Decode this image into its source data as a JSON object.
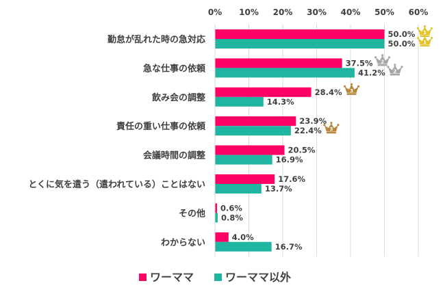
{
  "chart_data": {
    "type": "bar",
    "orientation": "horizontal",
    "categories": [
      "勤怠が乱れた時の急対応",
      "急な仕事の依頼",
      "飲み会の調整",
      "責任の重い仕事の依頼",
      "会議時間の調整",
      "とくに気を遣う（遣われている）ことはない",
      "その他",
      "わからない"
    ],
    "series": [
      {
        "name": "ワーママ",
        "color": "#FF0066",
        "values": [
          50.0,
          37.5,
          28.4,
          23.9,
          20.5,
          17.6,
          0.6,
          4.0
        ],
        "labels": [
          "50.0%",
          "37.5%",
          "28.4%",
          "23.9%",
          "20.5%",
          "17.6%",
          "0.6%",
          "4.0%"
        ],
        "ranks": [
          1,
          2,
          3,
          null,
          null,
          null,
          null,
          null
        ]
      },
      {
        "name": "ワーママ以外",
        "color": "#20B5A0",
        "values": [
          50.0,
          41.2,
          14.3,
          22.4,
          16.9,
          13.7,
          0.8,
          16.7
        ],
        "labels": [
          "50.0%",
          "41.2%",
          "14.3%",
          "22.4%",
          "16.9%",
          "13.7%",
          "0.8%",
          "16.7%"
        ],
        "ranks": [
          1,
          2,
          null,
          3,
          null,
          null,
          null,
          null
        ]
      }
    ],
    "xlim": [
      0,
      60
    ],
    "xticks": [
      "0%",
      "10%",
      "20%",
      "30%",
      "40%",
      "50%",
      "60%"
    ],
    "grid": true,
    "legend": "bottom",
    "rank_colors": {
      "1": "#E3C42C",
      "2": "#A6A6A6",
      "3": "#B8883A"
    }
  }
}
